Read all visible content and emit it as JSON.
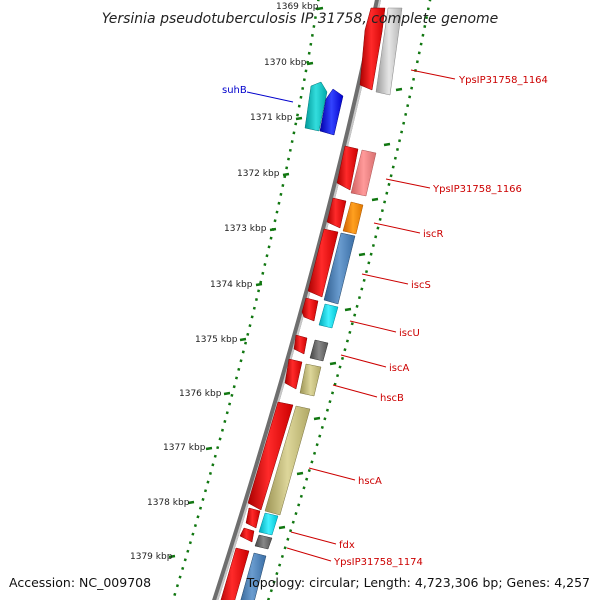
{
  "title": "Yersinia pseudotuberculosis IP 31758, complete genome",
  "accession": "Accession: NC_009708",
  "topology": "Topology: circular; Length: 4,723,306 bp; Genes: 4,257",
  "ticks": [
    "1369 kbp",
    "1370 kbp",
    "1371 kbp",
    "1372 kbp",
    "1373 kbp",
    "1374 kbp",
    "1375 kbp",
    "1376 kbp",
    "1377 kbp",
    "1378 kbp",
    "1379 kbp"
  ],
  "genes": {
    "suhB": "suhB",
    "g1164": "YpsIP31758_1164",
    "g1166": "YpsIP31758_1166",
    "iscR": "iscR",
    "iscS": "iscS",
    "iscU": "iscU",
    "iscA": "iscA",
    "hscB": "hscB",
    "hscA": "hscA",
    "fdx": "fdx",
    "g1174": "YpsIP31758_1174"
  },
  "colors": {
    "forward_strand": "#ee1111",
    "reverse_strand": "#1f4fff",
    "label_red": "#cc0000",
    "label_blue": "#0000cc",
    "tick": "#117711",
    "backbone": "#808080"
  }
}
